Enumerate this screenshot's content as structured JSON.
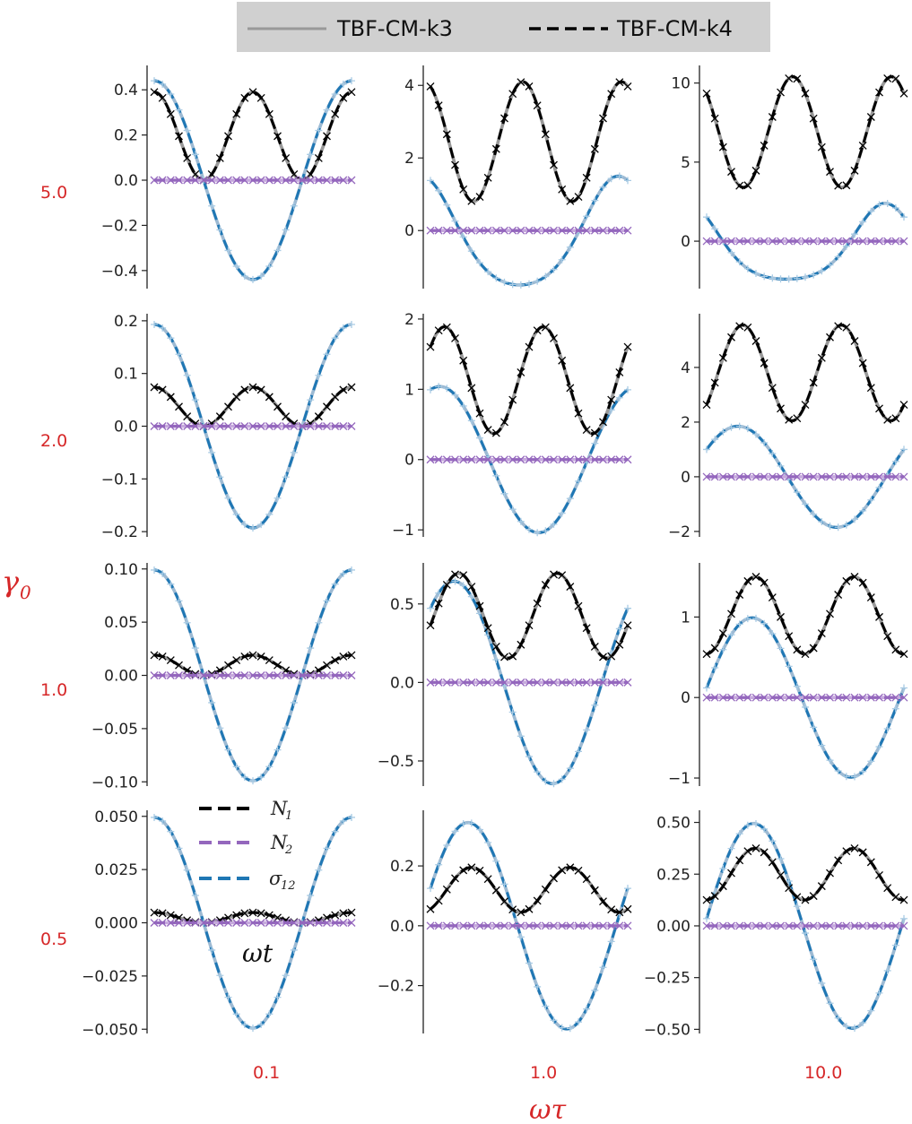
{
  "legend_top": {
    "items": [
      {
        "label": "TBF-CM-k3",
        "color": "#999999",
        "dash": "solid"
      },
      {
        "label": "TBF-CM-k4",
        "color": "#000000",
        "dash": "dashed"
      }
    ]
  },
  "axis_titles": {
    "row_symbol": "γ",
    "row_subscript": "0",
    "col_label": "ωτ",
    "inner_label": "ωt"
  },
  "colors": {
    "N1": "#000000",
    "N2": "#9467bd",
    "sigma12": "#1f77b4",
    "k3": "#999999",
    "headers": "#d62728"
  },
  "chart_data": {
    "type": "line",
    "layout": "4x3 grid of subplots",
    "x_range": [
      0,
      6.2832
    ],
    "x_note": "ωt over one period, no x tick labels",
    "row_headers": [
      "5.0",
      "2.0",
      "1.0",
      "0.5"
    ],
    "col_headers": [
      "0.1",
      "1.0",
      "10.0"
    ],
    "legend_inner": [
      {
        "key": "N1",
        "main": "N",
        "sub": "1"
      },
      {
        "key": "N2",
        "main": "N",
        "sub": "2"
      },
      {
        "key": "sigma12",
        "main": "σ",
        "sub": "12"
      }
    ],
    "models": [
      "TBF-CM-k3",
      "TBF-CM-k4"
    ],
    "panels": [
      {
        "row": 0,
        "col": 0,
        "ylim": [
          -0.48,
          0.5
        ],
        "yticks": [
          "0.4",
          "0.2",
          "0.0",
          "−0.2",
          "−0.4"
        ],
        "ytick_values": [
          0.4,
          0.2,
          0.0,
          -0.2,
          -0.4
        ],
        "sigma12": {
          "amp": 0.44,
          "phase": 0.0,
          "offset": 0.0
        },
        "N1": {
          "mean": 0.195,
          "amp": 0.195,
          "phase": 0.0,
          "harmonic": 2
        },
        "N2": {
          "value": 0.0
        }
      },
      {
        "row": 0,
        "col": 1,
        "ylim": [
          -1.6,
          4.5
        ],
        "yticks": [
          "4",
          "2",
          "0"
        ],
        "ytick_values": [
          4,
          2,
          0
        ],
        "sigma12": {
          "amp": 1.5,
          "phase": 0.3,
          "offset": 0.0,
          "skew": 0.35
        },
        "N1": {
          "mean": 2.45,
          "amp": 1.65,
          "phase": 0.2,
          "harmonic": 2
        },
        "N2": {
          "value": 0.0
        }
      },
      {
        "row": 0,
        "col": 2,
        "ylim": [
          -3.0,
          11.0
        ],
        "yticks": [
          "10",
          "5",
          "0"
        ],
        "ytick_values": [
          10,
          5,
          0
        ],
        "sigma12": {
          "amp": 2.4,
          "phase": 0.6,
          "offset": 0.0,
          "skew": 0.5
        },
        "N1": {
          "mean": 6.9,
          "amp": 3.5,
          "phase": 0.4,
          "harmonic": 2
        },
        "N2": {
          "value": 0.0
        }
      },
      {
        "row": 1,
        "col": 0,
        "ylim": [
          -0.21,
          0.21
        ],
        "yticks": [
          "0.2",
          "0.1",
          "0.0",
          "−0.1",
          "−0.2"
        ],
        "ytick_values": [
          0.2,
          0.1,
          0.0,
          -0.1,
          -0.2
        ],
        "sigma12": {
          "amp": 0.193,
          "phase": 0.0,
          "offset": 0.0
        },
        "N1": {
          "mean": 0.037,
          "amp": 0.037,
          "phase": 0.0,
          "harmonic": 2
        },
        "N2": {
          "value": 0.0
        }
      },
      {
        "row": 1,
        "col": 1,
        "ylim": [
          -1.1,
          2.05
        ],
        "yticks": [
          "2",
          "1",
          "0",
          "−1"
        ],
        "ytick_values": [
          2,
          1,
          0,
          -1
        ],
        "sigma12": {
          "amp": 1.04,
          "phase": -0.3,
          "offset": 0.0
        },
        "N1": {
          "mean": 1.13,
          "amp": 0.76,
          "phase": -0.45,
          "harmonic": 2
        },
        "N2": {
          "value": 0.0
        }
      },
      {
        "row": 1,
        "col": 2,
        "ylim": [
          -2.2,
          5.9
        ],
        "yticks": [
          "4",
          "2",
          "0",
          "−2"
        ],
        "ytick_values": [
          4,
          2,
          0,
          -2
        ],
        "sigma12": {
          "amp": 1.85,
          "phase": -1.0,
          "offset": 0.0
        },
        "N1": {
          "mean": 3.8,
          "amp": 1.75,
          "phase": -1.15,
          "harmonic": 2
        },
        "N2": {
          "value": 0.0
        }
      },
      {
        "row": 2,
        "col": 0,
        "ylim": [
          -0.104,
          0.104
        ],
        "yticks": [
          "0.10",
          "0.05",
          "0.00",
          "−0.05",
          "−0.10"
        ],
        "ytick_values": [
          0.1,
          0.05,
          0.0,
          -0.05,
          -0.1
        ],
        "sigma12": {
          "amp": 0.099,
          "phase": 0.0,
          "offset": 0.0
        },
        "N1": {
          "mean": 0.0095,
          "amp": 0.0095,
          "phase": 0.0,
          "harmonic": 2
        },
        "N2": {
          "value": 0.0
        }
      },
      {
        "row": 2,
        "col": 1,
        "ylim": [
          -0.66,
          0.75
        ],
        "yticks": [
          "0.5",
          "0.0",
          "−0.5"
        ],
        "ytick_values": [
          0.5,
          0.0,
          -0.5
        ],
        "sigma12": {
          "amp": 0.645,
          "phase": -0.75,
          "offset": 0.0
        },
        "N1": {
          "mean": 0.425,
          "amp": 0.27,
          "phase": -0.9,
          "harmonic": 2
        },
        "N2": {
          "value": 0.0
        }
      },
      {
        "row": 2,
        "col": 2,
        "ylim": [
          -1.1,
          1.65
        ],
        "yticks": [
          "1",
          "0",
          "−1"
        ],
        "ytick_values": [
          1,
          0,
          -1
        ],
        "sigma12": {
          "amp": 0.99,
          "phase": -1.45,
          "offset": 0.0
        },
        "N1": {
          "mean": 1.02,
          "amp": 0.48,
          "phase": -1.55,
          "harmonic": 2
        },
        "N2": {
          "value": 0.0
        }
      },
      {
        "row": 3,
        "col": 0,
        "ylim": [
          -0.052,
          0.052
        ],
        "yticks": [
          "0.050",
          "0.025",
          "0.000",
          "−0.025",
          "−0.050"
        ],
        "ytick_values": [
          0.05,
          0.025,
          0.0,
          -0.025,
          -0.05
        ],
        "sigma12": {
          "amp": 0.0495,
          "phase": 0.0,
          "offset": 0.0
        },
        "N1": {
          "mean": 0.0024,
          "amp": 0.0024,
          "phase": 0.0,
          "harmonic": 2
        },
        "N2": {
          "value": 0.0
        }
      },
      {
        "row": 3,
        "col": 1,
        "ylim": [
          -0.36,
          0.38
        ],
        "yticks": [
          "0.2",
          "0.0",
          "−0.2"
        ],
        "ytick_values": [
          0.2,
          0.0,
          -0.2
        ],
        "sigma12": {
          "amp": 0.345,
          "phase": -1.2,
          "offset": 0.0
        },
        "N1": {
          "mean": 0.12,
          "amp": 0.075,
          "phase": -1.3,
          "harmonic": 2
        },
        "N2": {
          "value": 0.0
        }
      },
      {
        "row": 3,
        "col": 2,
        "ylim": [
          -0.52,
          0.55
        ],
        "yticks": [
          "0.50",
          "0.25",
          "0.00",
          "−0.25",
          "−0.50"
        ],
        "ytick_values": [
          0.5,
          0.25,
          0.0,
          -0.25,
          -0.5
        ],
        "sigma12": {
          "amp": 0.495,
          "phase": -1.5,
          "offset": 0.0
        },
        "N1": {
          "mean": 0.25,
          "amp": 0.125,
          "phase": -1.55,
          "harmonic": 2
        },
        "N2": {
          "value": 0.0
        }
      }
    ]
  }
}
